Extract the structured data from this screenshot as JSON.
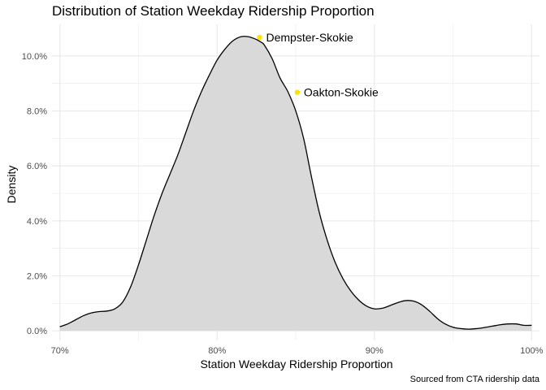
{
  "chart_data": {
    "type": "area",
    "title": "Distribution of Station Weekday Ridership Proportion",
    "xlabel": "Station Weekday Ridership Proportion",
    "ylabel": "Density",
    "caption": "Sourced from CTA ridership data",
    "xlim": [
      0.695,
      1.005
    ],
    "ylim": [
      -0.0035,
      0.1115
    ],
    "x_ticks": [
      0.7,
      0.8,
      0.9,
      1.0
    ],
    "x_tick_labels": [
      "70%",
      "80%",
      "90%",
      "100%"
    ],
    "y_ticks": [
      0.0,
      0.02,
      0.04,
      0.06,
      0.08,
      0.1
    ],
    "y_tick_labels": [
      "0.0%",
      "2.0%",
      "4.0%",
      "6.0%",
      "8.0%",
      "10.0%"
    ],
    "grid": true,
    "series": [
      {
        "x": [
          0.7,
          0.705,
          0.71,
          0.715,
          0.72,
          0.725,
          0.73,
          0.735,
          0.74,
          0.745,
          0.75,
          0.755,
          0.76,
          0.765,
          0.77,
          0.775,
          0.78,
          0.785,
          0.79,
          0.795,
          0.8,
          0.805,
          0.81,
          0.815,
          0.82,
          0.825,
          0.828,
          0.83,
          0.835,
          0.84,
          0.845,
          0.85,
          0.855,
          0.86,
          0.865,
          0.87,
          0.875,
          0.88,
          0.885,
          0.89,
          0.895,
          0.9,
          0.905,
          0.91,
          0.915,
          0.92,
          0.925,
          0.93,
          0.935,
          0.94,
          0.945,
          0.95,
          0.955,
          0.96,
          0.965,
          0.97,
          0.975,
          0.98,
          0.985,
          0.99,
          0.995,
          1.0
        ],
        "y": [
          0.0015,
          0.0025,
          0.004,
          0.0055,
          0.0065,
          0.007,
          0.0072,
          0.008,
          0.0105,
          0.016,
          0.024,
          0.033,
          0.042,
          0.05,
          0.057,
          0.064,
          0.072,
          0.08,
          0.087,
          0.093,
          0.0985,
          0.1025,
          0.1055,
          0.107,
          0.107,
          0.106,
          0.105,
          0.104,
          0.099,
          0.092,
          0.087,
          0.08,
          0.07,
          0.056,
          0.043,
          0.033,
          0.025,
          0.019,
          0.0145,
          0.0112,
          0.009,
          0.008,
          0.0082,
          0.0092,
          0.0103,
          0.011,
          0.0108,
          0.0095,
          0.0072,
          0.0045,
          0.0025,
          0.0013,
          0.0008,
          0.0006,
          0.0008,
          0.0012,
          0.0017,
          0.0022,
          0.0025,
          0.0025,
          0.002,
          0.002
        ]
      }
    ],
    "annotations": [
      {
        "label": "Dempster-Skokie",
        "x": 0.827,
        "y": 0.1068,
        "color": "#FFE100"
      },
      {
        "label": "Oakton-Skokie",
        "x": 0.851,
        "y": 0.0868,
        "color": "#FFE100"
      }
    ],
    "colors": {
      "fill": "#d9d9d9",
      "line": "#000000",
      "grid": "#ebebeb",
      "point": "#FFE100"
    }
  }
}
